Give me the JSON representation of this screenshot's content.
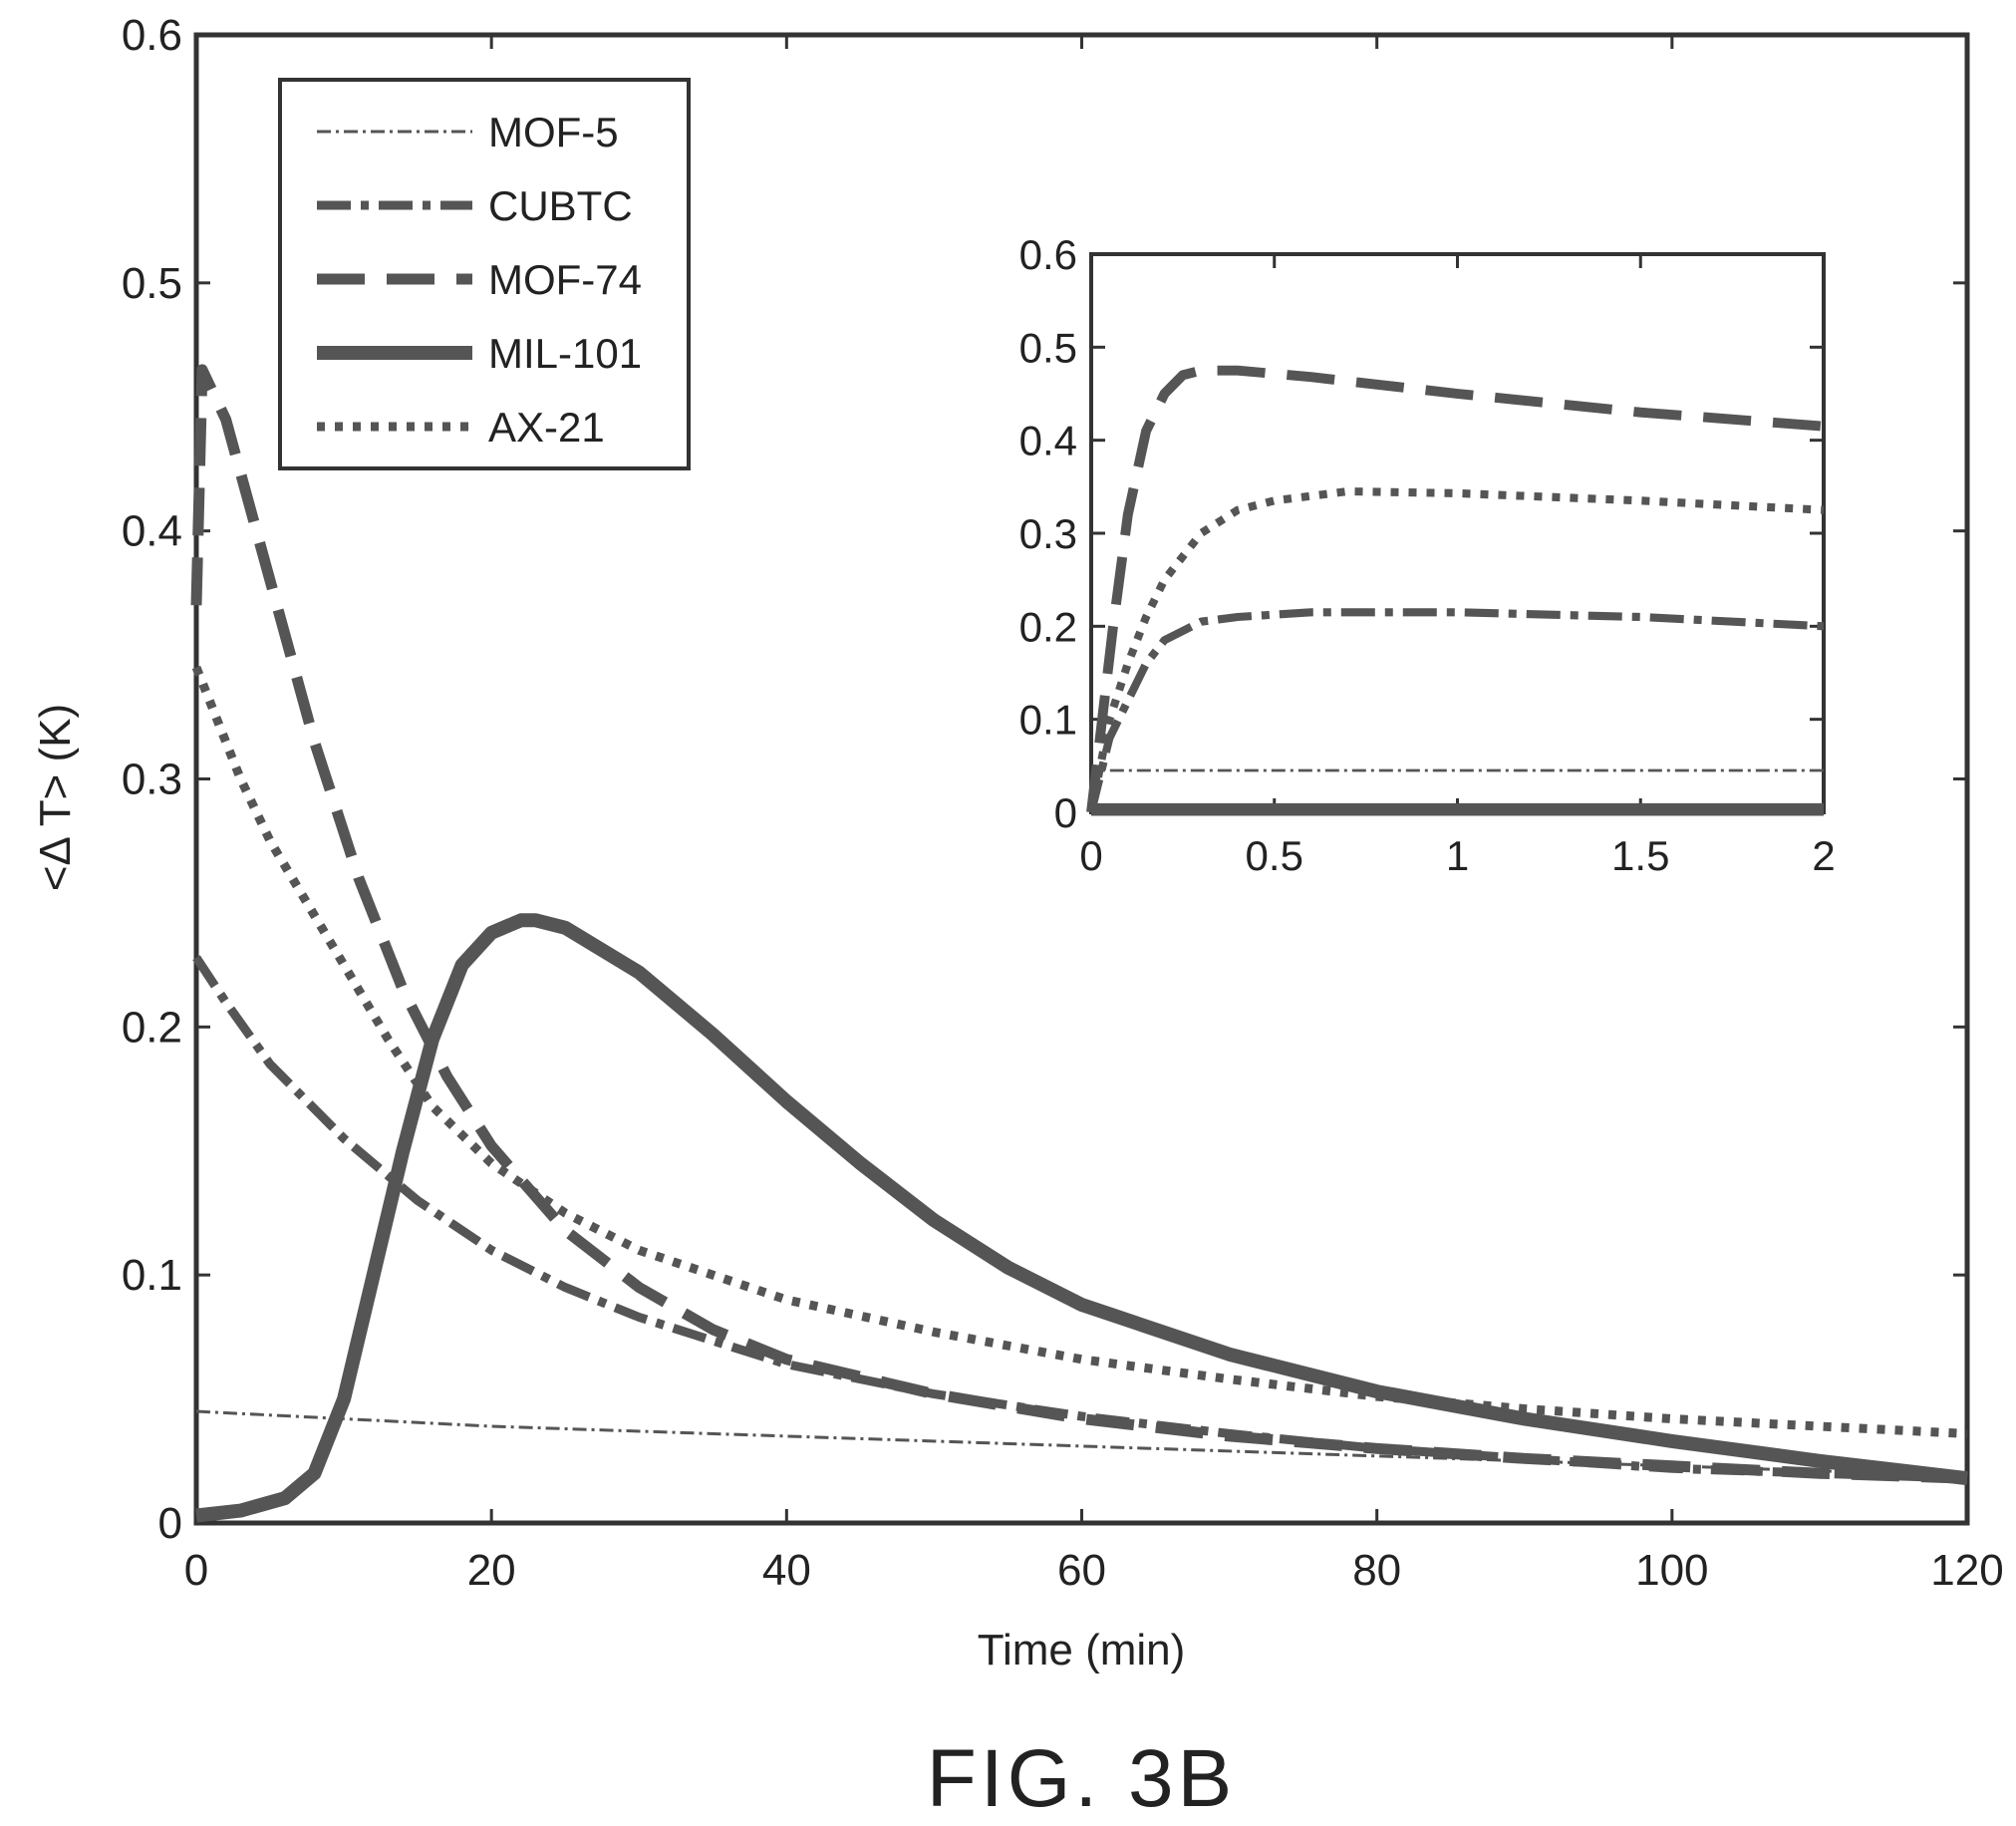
{
  "figure_caption": "FIG. 3B",
  "chart_data": [
    {
      "type": "line",
      "xlabel": "Time (min)",
      "ylabel": "<Δ T> (K)",
      "xlim": [
        0,
        120
      ],
      "ylim": [
        0,
        0.6
      ],
      "xticks": [
        "0",
        "20",
        "40",
        "60",
        "80",
        "100",
        "120"
      ],
      "yticks": [
        "0",
        "0.1",
        "0.2",
        "0.3",
        "0.4",
        "0.5",
        "0.6"
      ],
      "grid": false,
      "legend_position": "top-left",
      "series": [
        {
          "name": "MOF-5",
          "style": "dash-dot-thin",
          "color": "#555555",
          "x": [
            0,
            10,
            20,
            40,
            60,
            80,
            100,
            120
          ],
          "y": [
            0.045,
            0.042,
            0.039,
            0.035,
            0.031,
            0.027,
            0.023,
            0.019
          ]
        },
        {
          "name": "CUBTC",
          "style": "dash-dot",
          "color": "#555555",
          "x": [
            0,
            2,
            5,
            10,
            15,
            20,
            25,
            30,
            40,
            50,
            60,
            70,
            80,
            90,
            100,
            110,
            120
          ],
          "y": [
            0.228,
            0.21,
            0.185,
            0.155,
            0.13,
            0.11,
            0.095,
            0.083,
            0.064,
            0.052,
            0.043,
            0.036,
            0.03,
            0.026,
            0.022,
            0.02,
            0.018
          ]
        },
        {
          "name": "MOF-74",
          "style": "dash",
          "color": "#555555",
          "x": [
            0,
            0.4,
            2,
            5,
            8,
            11,
            14,
            17,
            20,
            25,
            30,
            35,
            40,
            50,
            60,
            70,
            80,
            90,
            100,
            110,
            120
          ],
          "y": [
            0.37,
            0.465,
            0.445,
            0.38,
            0.315,
            0.26,
            0.215,
            0.18,
            0.152,
            0.118,
            0.095,
            0.078,
            0.066,
            0.052,
            0.042,
            0.035,
            0.03,
            0.026,
            0.023,
            0.02,
            0.018
          ]
        },
        {
          "name": "MIL-101",
          "style": "solid-thick",
          "color": "#555555",
          "x": [
            0,
            3,
            6,
            8,
            10,
            12,
            14,
            16,
            18,
            20,
            22,
            23,
            25,
            30,
            35,
            40,
            45,
            50,
            55,
            60,
            70,
            80,
            90,
            100,
            110,
            120
          ],
          "y": [
            0.003,
            0.005,
            0.01,
            0.02,
            0.05,
            0.1,
            0.15,
            0.195,
            0.225,
            0.238,
            0.243,
            0.243,
            0.24,
            0.222,
            0.197,
            0.17,
            0.145,
            0.122,
            0.103,
            0.088,
            0.068,
            0.053,
            0.042,
            0.033,
            0.025,
            0.018
          ]
        },
        {
          "name": "AX-21",
          "style": "dotted",
          "color": "#555555",
          "x": [
            0,
            1,
            3,
            5,
            8,
            10,
            13,
            16,
            20,
            25,
            30,
            40,
            50,
            60,
            70,
            80,
            90,
            100,
            110,
            120
          ],
          "y": [
            0.345,
            0.33,
            0.3,
            0.275,
            0.245,
            0.225,
            0.195,
            0.168,
            0.145,
            0.125,
            0.11,
            0.09,
            0.077,
            0.066,
            0.058,
            0.051,
            0.046,
            0.042,
            0.039,
            0.036
          ]
        }
      ]
    },
    {
      "type": "line",
      "role": "inset",
      "xlim": [
        0,
        2
      ],
      "ylim": [
        0,
        0.6
      ],
      "xticks": [
        "0",
        "0.5",
        "1",
        "1.5",
        "2"
      ],
      "yticks": [
        "0",
        "0.1",
        "0.2",
        "0.3",
        "0.4",
        "0.5",
        "0.6"
      ],
      "series": [
        {
          "name": "MOF-5",
          "style": "dash-dot-thin",
          "x": [
            0,
            0.01,
            0.03,
            2
          ],
          "y": [
            0,
            0.04,
            0.045,
            0.045
          ]
        },
        {
          "name": "CUBTC",
          "style": "dash-dot",
          "x": [
            0,
            0.05,
            0.1,
            0.15,
            0.2,
            0.3,
            0.4,
            0.6,
            0.8,
            1.0,
            1.5,
            2.0
          ],
          "y": [
            0,
            0.08,
            0.12,
            0.16,
            0.185,
            0.205,
            0.21,
            0.215,
            0.215,
            0.215,
            0.21,
            0.2
          ]
        },
        {
          "name": "MOF-74",
          "style": "dash",
          "x": [
            0,
            0.03,
            0.06,
            0.1,
            0.15,
            0.2,
            0.25,
            0.3,
            0.4,
            0.6,
            1.0,
            1.5,
            2.0
          ],
          "y": [
            0,
            0.1,
            0.2,
            0.32,
            0.41,
            0.45,
            0.47,
            0.475,
            0.475,
            0.468,
            0.45,
            0.43,
            0.415
          ]
        },
        {
          "name": "MIL-101",
          "style": "solid-thick",
          "x": [
            0,
            2
          ],
          "y": [
            0.003,
            0.003
          ]
        },
        {
          "name": "AX-21",
          "style": "dotted",
          "x": [
            0,
            0.05,
            0.1,
            0.15,
            0.2,
            0.3,
            0.4,
            0.5,
            0.7,
            1.0,
            1.5,
            2.0
          ],
          "y": [
            0,
            0.1,
            0.16,
            0.21,
            0.25,
            0.3,
            0.325,
            0.335,
            0.345,
            0.343,
            0.335,
            0.325
          ]
        }
      ]
    }
  ]
}
